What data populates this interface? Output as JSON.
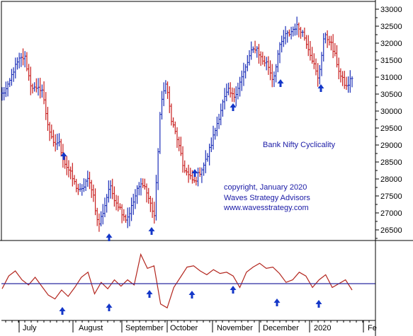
{
  "chart_data": {
    "type": "ohlc",
    "title": "Bank Nifty Cyclicality",
    "annotations": [
      "copyright, January 2020",
      "Waves Strategy Advisors",
      "www.wavesstrategy.com"
    ],
    "y_axis": {
      "side": "right",
      "min": 26000,
      "max": 33000,
      "ticks": [
        33000,
        32500,
        32000,
        31500,
        31000,
        30500,
        30000,
        29500,
        29000,
        28500,
        28000,
        27500,
        27000,
        26500
      ]
    },
    "x_axis_labels": [
      "July",
      "August",
      "September",
      "October",
      "November",
      "December",
      "2020",
      "Fe"
    ],
    "colors": {
      "up_bar": "#1c2fb8",
      "down_bar": "#c81e1e",
      "oscillator_line": "#b3261e",
      "signal_line": "#2a2aa0",
      "arrow": "#1437c8",
      "annotation_text": "#1a1aa6"
    },
    "series": [
      {
        "name": "price",
        "close_path": [
          30500,
          30700,
          31200,
          31500,
          31600,
          30800,
          30600,
          30700,
          29700,
          29000,
          29100,
          28500,
          28200,
          27800,
          27600,
          28000,
          27700,
          26600,
          27100,
          27800,
          27400,
          27100,
          26800,
          27200,
          27700,
          27900,
          27400,
          26900,
          30000,
          30900,
          29700,
          29200,
          28400,
          28100,
          27900,
          28200,
          28500,
          29000,
          29600,
          30200,
          30600,
          30400,
          30800,
          31200,
          31700,
          31900,
          31500,
          31400,
          30900,
          31800,
          32200,
          32300,
          32500,
          32400,
          32000,
          31500,
          30900,
          32200,
          32100,
          31600,
          31000,
          30700,
          31000
        ]
      },
      {
        "name": "cycle oscillator",
        "note": "lower panel",
        "values": [
          -0.4,
          0.6,
          1.0,
          0.3,
          -0.1,
          0.5,
          -0.2,
          -0.9,
          -1.2,
          -0.5,
          -1.0,
          -0.3,
          0.5,
          0.9,
          -0.8,
          0.1,
          -0.4,
          0.3,
          -0.2,
          0.3,
          -0.1,
          2.3,
          1.2,
          1.4,
          -1.6,
          -1.9,
          -0.3,
          0.5,
          1.3,
          1.4,
          1.0,
          0.7,
          1.1,
          0.8,
          0.9,
          0.6,
          -0.3,
          0.9,
          1.3,
          1.6,
          1.2,
          1.3,
          0.8,
          0.1,
          0.3,
          0.9,
          0.6,
          -0.3,
          0.3,
          0.7,
          -0.3,
          0.0,
          0.3,
          -0.5
        ]
      }
    ],
    "cycle_low_markers": 8,
    "oscillator_zero_line": true
  }
}
